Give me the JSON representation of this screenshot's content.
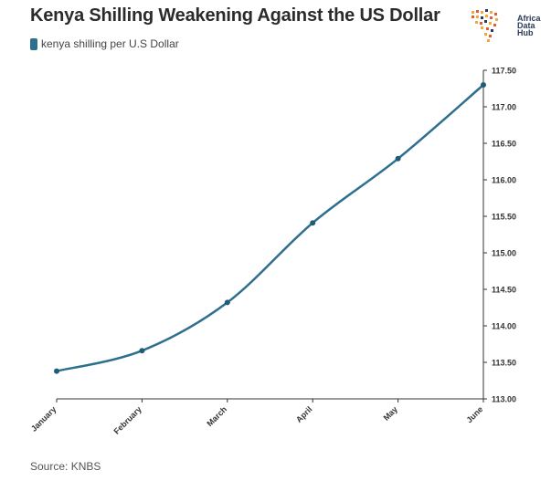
{
  "title": "Kenya Shilling Weakening Against the US Dollar",
  "legend": {
    "label": "kenya shilling per U.S Dollar",
    "color": "#2e6f8e"
  },
  "logo": {
    "line1": "Africa",
    "line2": "Data",
    "line3": "Hub"
  },
  "source": "Source: KNBS",
  "chart_data": {
    "type": "line",
    "categories": [
      "January",
      "February",
      "March",
      "April",
      "May",
      "June"
    ],
    "series": [
      {
        "name": "kenya shilling per U.S Dollar",
        "values": [
          113.38,
          113.66,
          114.32,
          115.41,
          116.29,
          117.3
        ]
      }
    ],
    "ylim": [
      113.0,
      117.5
    ],
    "yticks": [
      "113.00",
      "113.50",
      "114.00",
      "114.50",
      "115.00",
      "115.50",
      "116.00",
      "116.50",
      "117.00",
      "117.50"
    ],
    "y_axis_position": "right",
    "grid": false,
    "legend_position": "top-left",
    "line_color": "#2e6f8e"
  }
}
